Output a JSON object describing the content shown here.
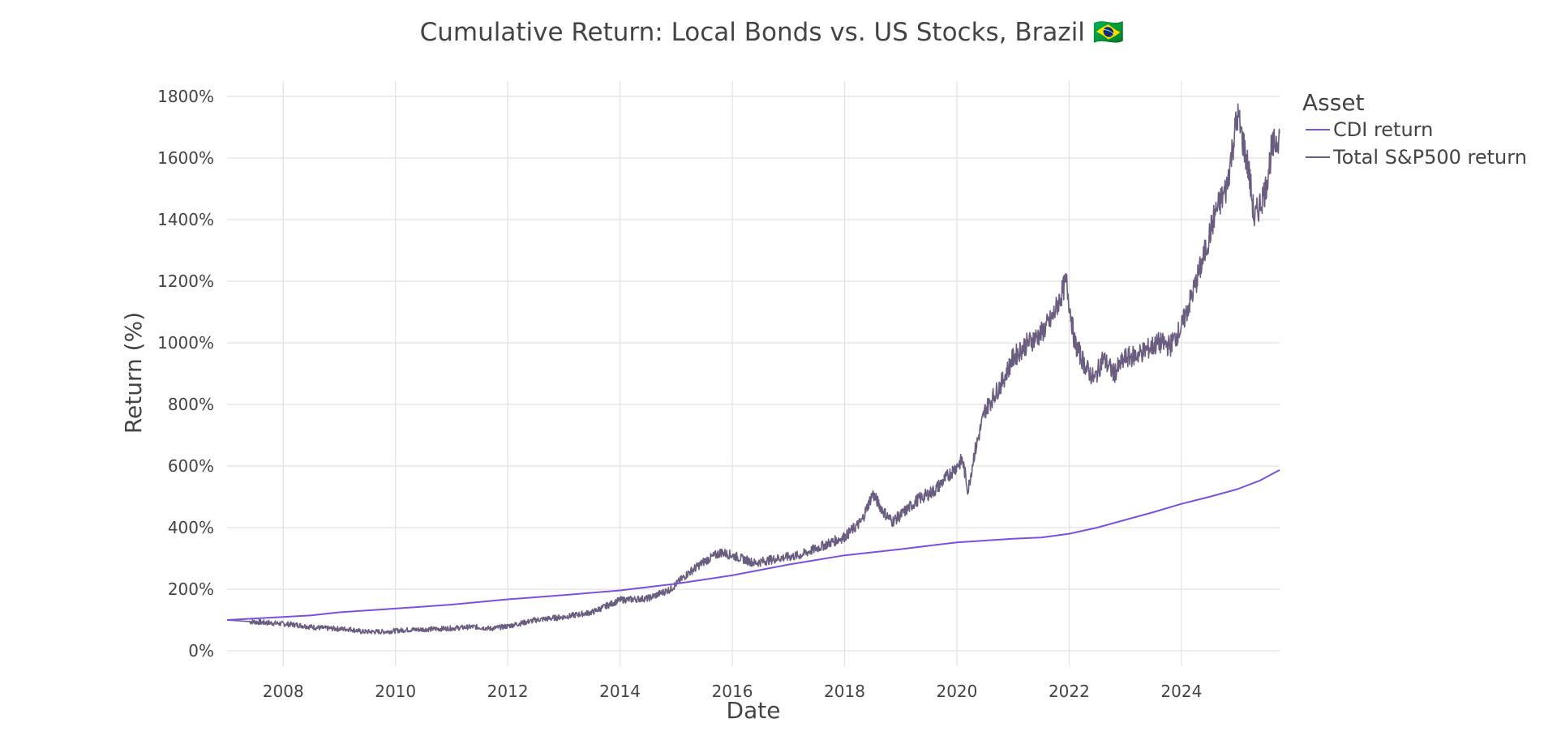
{
  "chart_data": {
    "type": "line",
    "title": "Cumulative Return: Local Bonds vs. US Stocks, Brazil 🇧🇷",
    "xlabel": "Date",
    "ylabel": "Return (%)",
    "x_range": [
      2007.0,
      2025.75
    ],
    "ylim": [
      -50,
      1850
    ],
    "x_ticks": [
      2008,
      2010,
      2012,
      2014,
      2016,
      2018,
      2020,
      2022,
      2024
    ],
    "x_tick_labels": [
      "2008",
      "2010",
      "2012",
      "2014",
      "2016",
      "2018",
      "2020",
      "2022",
      "2024"
    ],
    "y_ticks": [
      0,
      200,
      400,
      600,
      800,
      1000,
      1200,
      1400,
      1600,
      1800
    ],
    "y_tick_labels": [
      "0%",
      "200%",
      "400%",
      "600%",
      "800%",
      "1000%",
      "1200%",
      "1400%",
      "1600%",
      "1800%"
    ],
    "grid": true,
    "legend": {
      "title": "Asset",
      "placement": "top-right-outside"
    },
    "series": [
      {
        "name": "CDI return",
        "color": "#7b4fe0",
        "x": [
          2007.0,
          2008.0,
          2008.5,
          2009.0,
          2010.0,
          2011.0,
          2012.0,
          2013.0,
          2014.0,
          2015.0,
          2016.0,
          2017.0,
          2018.0,
          2019.0,
          2020.0,
          2021.0,
          2021.5,
          2022.0,
          2022.5,
          2023.0,
          2023.5,
          2024.0,
          2024.5,
          2025.0,
          2025.4,
          2025.75
        ],
        "values": [
          100,
          110,
          115,
          125,
          137,
          150,
          167,
          181,
          196,
          218,
          245,
          280,
          310,
          330,
          352,
          364,
          368,
          380,
          400,
          425,
          450,
          477,
          500,
          525,
          553,
          587
        ]
      },
      {
        "name": "Total S&P500 return",
        "color": "#6b5d80",
        "x": [
          2007.0,
          2007.4,
          2007.8,
          2008.2,
          2008.6,
          2008.9,
          2009.2,
          2009.4,
          2009.8,
          2010.2,
          2010.6,
          2011.0,
          2011.4,
          2011.7,
          2012.0,
          2012.5,
          2013.0,
          2013.5,
          2014.0,
          2014.5,
          2014.9,
          2015.2,
          2015.5,
          2015.8,
          2016.0,
          2016.4,
          2016.8,
          2017.2,
          2017.6,
          2018.0,
          2018.3,
          2018.5,
          2018.7,
          2018.85,
          2019.0,
          2019.3,
          2019.6,
          2019.9,
          2020.1,
          2020.2,
          2020.3,
          2020.5,
          2020.8,
          2021.0,
          2021.2,
          2021.5,
          2021.7,
          2021.95,
          2022.1,
          2022.3,
          2022.45,
          2022.6,
          2022.8,
          2023.0,
          2023.2,
          2023.4,
          2023.6,
          2023.8,
          2024.0,
          2024.2,
          2024.4,
          2024.6,
          2024.8,
          2024.9,
          2025.0,
          2025.2,
          2025.3,
          2025.5,
          2025.6,
          2025.75
        ],
        "values": [
          100,
          95,
          90,
          85,
          75,
          72,
          70,
          62,
          62,
          68,
          70,
          73,
          78,
          72,
          80,
          100,
          110,
          125,
          165,
          170,
          200,
          250,
          290,
          320,
          310,
          285,
          300,
          310,
          340,
          370,
          420,
          510,
          450,
          420,
          440,
          490,
          520,
          580,
          620,
          520,
          630,
          780,
          870,
          950,
          990,
          1030,
          1080,
          1200,
          1000,
          920,
          880,
          950,
          900,
          950,
          960,
          980,
          1000,
          990,
          1050,
          1160,
          1280,
          1420,
          1500,
          1620,
          1740,
          1560,
          1400,
          1500,
          1620,
          1680
        ]
      }
    ]
  }
}
